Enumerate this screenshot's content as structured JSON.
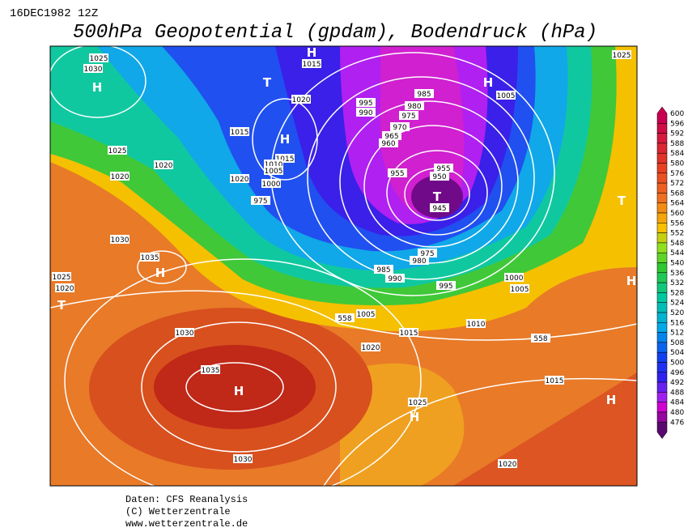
{
  "header": {
    "date": "16DEC1982 12Z",
    "title": "500hPa Geopotential (gpdam), Bodendruck (hPa)"
  },
  "map": {
    "pressure_centers": [
      "H",
      "T",
      "H",
      "H",
      "H",
      "T",
      "T",
      "H",
      "T",
      "H",
      "H",
      "H",
      "H"
    ],
    "isobar_labels": [
      1025,
      1030,
      1025,
      1020,
      1020,
      1015,
      1020,
      1015,
      1010,
      1005,
      1000,
      975,
      1020,
      1015,
      995,
      990,
      985,
      980,
      975,
      970,
      965,
      960,
      955,
      955,
      950,
      945,
      975,
      980,
      985,
      990,
      995,
      1000,
      1005,
      1025,
      1020,
      1030,
      1035,
      1030,
      1035,
      1030,
      1005,
      558,
      1015,
      1020,
      1010,
      1015,
      1025,
      1020,
      1025,
      1005,
      558
    ]
  },
  "colorbar": {
    "labels": [
      600,
      596,
      592,
      588,
      584,
      580,
      576,
      572,
      568,
      564,
      560,
      556,
      552,
      548,
      544,
      540,
      536,
      532,
      528,
      524,
      520,
      516,
      512,
      508,
      504,
      500,
      496,
      492,
      488,
      484,
      480,
      476
    ]
  },
  "footer": {
    "lines": [
      "Daten: CFS Reanalysis",
      "(C) Wetterzentrale",
      "www.wetterzentrale.de"
    ]
  }
}
